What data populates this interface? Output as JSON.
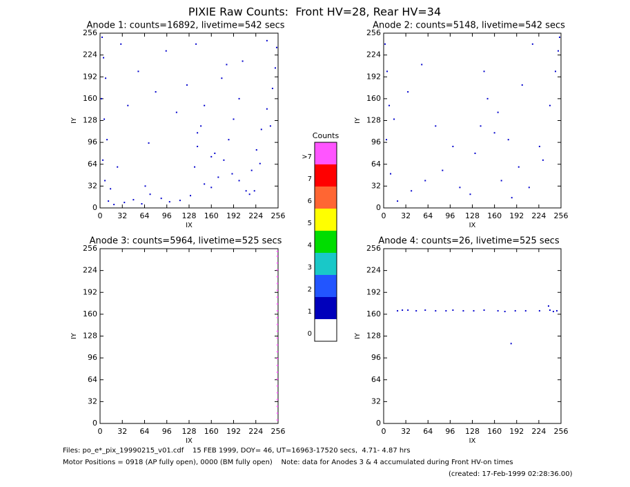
{
  "title": "PIXIE Raw Counts:  Front HV=28, Rear HV=34",
  "chart_data": [
    {
      "type": "scatter",
      "title": "Anode 1: counts=16892, livetime=542 secs",
      "xlabel": "IX",
      "ylabel": "IY",
      "xlim": [
        0,
        256
      ],
      "ylim": [
        0,
        256
      ],
      "xticks": [
        0,
        32,
        64,
        96,
        128,
        160,
        192,
        224,
        256
      ],
      "yticks": [
        0,
        32,
        64,
        96,
        128,
        160,
        192,
        224,
        256
      ],
      "color": "#0000cc",
      "x": [
        3,
        5,
        8,
        2,
        6,
        10,
        4,
        7,
        12,
        20,
        35,
        48,
        60,
        72,
        88,
        100,
        115,
        130,
        136,
        140,
        145,
        150,
        160,
        170,
        178,
        185,
        192,
        200,
        210,
        218,
        225,
        232,
        240,
        248,
        252,
        254,
        30,
        55,
        80,
        110,
        140,
        165,
        190,
        215,
        240,
        25,
        70,
        150,
        175,
        205,
        230,
        40,
        95,
        125,
        160,
        200,
        245,
        15,
        65,
        138,
        182,
        222
      ],
      "y": [
        250,
        220,
        190,
        160,
        130,
        100,
        70,
        40,
        10,
        5,
        8,
        12,
        6,
        20,
        14,
        9,
        11,
        18,
        60,
        90,
        120,
        150,
        30,
        45,
        70,
        100,
        130,
        160,
        25,
        55,
        85,
        115,
        145,
        175,
        205,
        235,
        240,
        200,
        170,
        140,
        110,
        80,
        50,
        20,
        245,
        60,
        95,
        35,
        190,
        215,
        65,
        150,
        230,
        180,
        75,
        40,
        120,
        28,
        32,
        240,
        210,
        25
      ]
    },
    {
      "type": "scatter",
      "title": "Anode 2: counts=5148, livetime=542 secs",
      "xlabel": "IX",
      "ylabel": "IY",
      "xlim": [
        0,
        256
      ],
      "ylim": [
        0,
        256
      ],
      "xticks": [
        0,
        32,
        64,
        96,
        128,
        160,
        192,
        224,
        256
      ],
      "yticks": [
        0,
        32,
        64,
        96,
        128,
        160,
        192,
        224,
        256
      ],
      "color": "#0000cc",
      "x": [
        2,
        5,
        8,
        4,
        10,
        20,
        40,
        60,
        85,
        110,
        125,
        132,
        140,
        150,
        165,
        180,
        195,
        210,
        225,
        240,
        248,
        252,
        254,
        35,
        75,
        145,
        170,
        200,
        230,
        15,
        55,
        100,
        160,
        185,
        215
      ],
      "y": [
        240,
        200,
        150,
        100,
        50,
        10,
        25,
        40,
        55,
        30,
        20,
        80,
        120,
        160,
        140,
        100,
        60,
        30,
        90,
        150,
        200,
        230,
        250,
        170,
        120,
        200,
        40,
        180,
        70,
        130,
        210,
        90,
        110,
        15,
        240
      ]
    },
    {
      "type": "scatter",
      "title": "Anode 3: counts=5964, livetime=525 secs",
      "xlabel": "IX",
      "ylabel": "IY",
      "xlim": [
        0,
        256
      ],
      "ylim": [
        0,
        256
      ],
      "xticks": [
        0,
        32,
        64,
        96,
        128,
        160,
        192,
        224,
        256
      ],
      "yticks": [
        0,
        32,
        64,
        96,
        128,
        160,
        192,
        224,
        256
      ],
      "color": "#ff55ff",
      "x": [
        255,
        255,
        255,
        255,
        255,
        255,
        255,
        255,
        255,
        255,
        255,
        255,
        255,
        255,
        255,
        255,
        255,
        255,
        255,
        255,
        255,
        255,
        255,
        255,
        255,
        255
      ],
      "y": [
        5,
        15,
        25,
        35,
        45,
        55,
        65,
        75,
        85,
        95,
        105,
        115,
        125,
        135,
        145,
        155,
        165,
        175,
        185,
        195,
        205,
        215,
        225,
        235,
        245,
        252
      ]
    },
    {
      "type": "scatter",
      "title": "Anode 4: counts=26, livetime=525 secs",
      "xlabel": "IX",
      "ylabel": "IY",
      "xlim": [
        0,
        256
      ],
      "ylim": [
        0,
        256
      ],
      "xticks": [
        0,
        32,
        64,
        96,
        128,
        160,
        192,
        224,
        256
      ],
      "yticks": [
        0,
        32,
        64,
        96,
        128,
        160,
        192,
        224,
        256
      ],
      "color": "#0000cc",
      "x": [
        20,
        27,
        35,
        47,
        60,
        75,
        90,
        100,
        115,
        130,
        145,
        165,
        175,
        190,
        205,
        225,
        240,
        245,
        250,
        184,
        238
      ],
      "y": [
        165,
        166,
        166,
        165,
        166,
        165,
        165,
        166,
        165,
        165,
        166,
        165,
        164,
        165,
        165,
        165,
        166,
        164,
        165,
        117,
        172
      ]
    }
  ],
  "colorbar": {
    "title": "Counts",
    "levels": [
      {
        "label": ">7",
        "color": "#ff55ff"
      },
      {
        "label": "7",
        "color": "#ff0000"
      },
      {
        "label": "6",
        "color": "#ff6633"
      },
      {
        "label": "5",
        "color": "#ffff00"
      },
      {
        "label": "4",
        "color": "#00dd00"
      },
      {
        "label": "3",
        "color": "#19c8c8"
      },
      {
        "label": "2",
        "color": "#2255ff"
      },
      {
        "label": "1",
        "color": "#0000bb"
      },
      {
        "label": "0",
        "color": "#ffffff"
      }
    ]
  },
  "footer": [
    "Files: po_e*_pix_19990215_v01.cdf    15 FEB 1999, DOY= 46, UT=16963-17520 secs,  4.71- 4.87 hrs",
    "Motor Positions = 0918 (AP fully open), 0000 (BM fully open)    Note: data for Anodes 3 & 4 accumulated during Front HV-on times",
    "(created: 17-Feb-1999 02:28:36.00)"
  ]
}
